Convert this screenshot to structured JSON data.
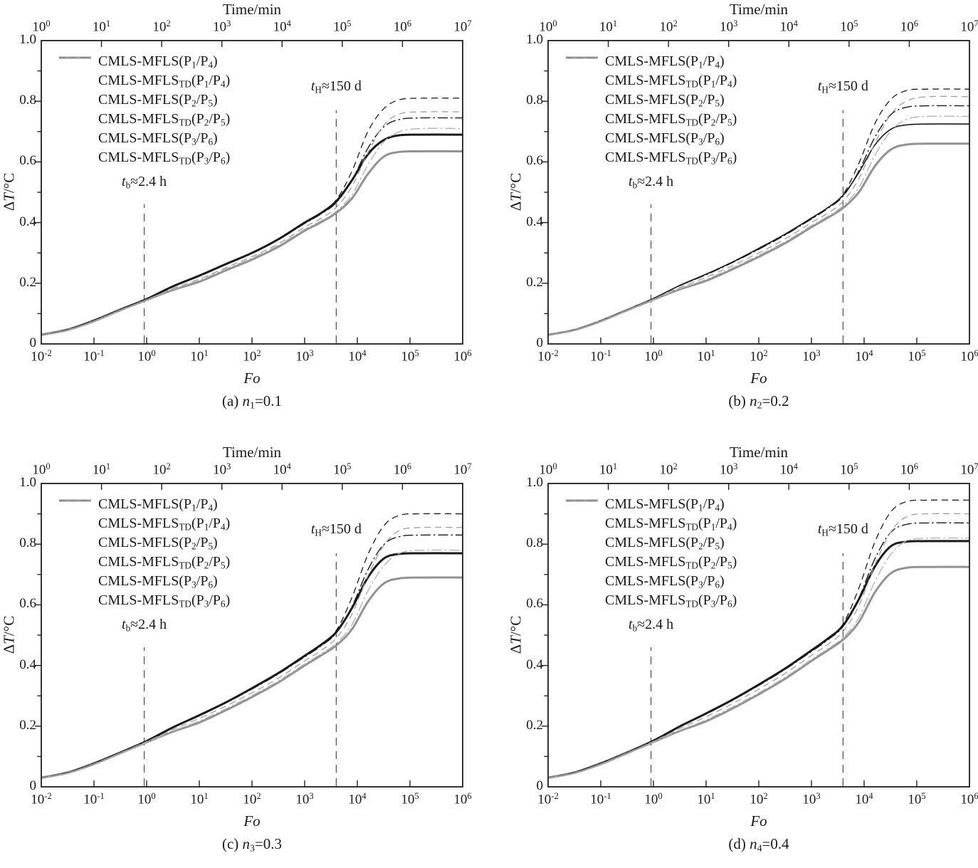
{
  "figure": {
    "background": "#ffffff",
    "text_color": "#1a1a1a",
    "frame_color": "#1f1f1f"
  },
  "chart_data": {
    "type": "line",
    "shared": {
      "top_axis": {
        "label": "Time/min",
        "base": "10",
        "exponents": [
          0,
          1,
          2,
          3,
          4,
          5,
          6,
          7
        ],
        "range_log10": [
          0,
          7
        ]
      },
      "x_axis": {
        "label_parts": [
          [
            "Fo",
            "i"
          ]
        ],
        "base": "10",
        "exponents": [
          -2,
          -1,
          0,
          1,
          2,
          3,
          4,
          5,
          6
        ],
        "range_log10": [
          -2,
          6
        ]
      },
      "y_axis": {
        "label_parts": [
          [
            "Δ",
            ""
          ],
          [
            "T",
            "i"
          ],
          [
            "/°C",
            ""
          ]
        ],
        "ticks": [
          "0",
          "0.2",
          "0.4",
          "0.6",
          "0.8",
          "1.0"
        ],
        "tick_values": [
          0,
          0.2,
          0.4,
          0.6,
          0.8,
          1.0
        ],
        "minor_values": [
          0.1,
          0.3,
          0.5,
          0.7,
          0.9
        ],
        "range": [
          0,
          1
        ]
      },
      "grid": "off",
      "legend_position": "upper-left",
      "annotations": [
        {
          "label_parts": [
            [
              "t",
              "i"
            ],
            [
              "b",
              "sub"
            ],
            [
              "≈2.4 h",
              ""
            ]
          ],
          "x_log10": -0.046,
          "line_top_v": 0.46,
          "label_bottom_v": 0.503
        },
        {
          "label_parts": [
            [
              "t",
              "i"
            ],
            [
              "H",
              "sub"
            ],
            [
              "≈150 d",
              ""
            ]
          ],
          "x_log10": 3.6,
          "line_top_v": 0.77,
          "label_bottom_v": 0.818
        }
      ],
      "x_grid_log10": [
        -2,
        -1.5,
        -1,
        -0.5,
        0,
        0.5,
        1,
        1.5,
        2,
        2.5,
        3,
        3.3,
        3.6,
        3.9,
        4.2,
        4.5,
        4.8,
        5.2,
        6
      ],
      "series_defs": [
        {
          "name": "CMLS-MFLS(P1/P4)",
          "label_parts": [
            [
              "CMLS-MFLS",
              ""
            ],
            [
              "(P",
              ""
            ],
            [
              "1",
              "sub"
            ],
            [
              "/P",
              ""
            ],
            [
              "4",
              "sub"
            ],
            [
              ")",
              ""
            ]
          ],
          "color": "#1a1a1a",
          "width": 3.0,
          "dash": "solid"
        },
        {
          "name": "CMLS-MFLS_TD(P1/P4)",
          "label_parts": [
            [
              "CMLS-MFLS",
              ""
            ],
            [
              "TD",
              "sub"
            ],
            [
              "(P",
              ""
            ],
            [
              "1",
              "sub"
            ],
            [
              "/P",
              ""
            ],
            [
              "4",
              "sub"
            ],
            [
              ")",
              ""
            ]
          ],
          "color": "#929292",
          "width": 3.0,
          "dash": "solid"
        },
        {
          "name": "CMLS-MFLS(P2/P5)",
          "label_parts": [
            [
              "CMLS-MFLS",
              ""
            ],
            [
              "(P",
              ""
            ],
            [
              "2",
              "sub"
            ],
            [
              "/P",
              ""
            ],
            [
              "5",
              "sub"
            ],
            [
              ")",
              ""
            ]
          ],
          "color": "#1a1a1a",
          "width": 1.4,
          "dash": "dashdot"
        },
        {
          "name": "CMLS-MFLS_TD(P2/P5)",
          "label_parts": [
            [
              "CMLS-MFLS",
              ""
            ],
            [
              "TD",
              "sub"
            ],
            [
              "(P",
              ""
            ],
            [
              "2",
              "sub"
            ],
            [
              "/P",
              ""
            ],
            [
              "5",
              "sub"
            ],
            [
              ")",
              ""
            ]
          ],
          "color": "#b4b4b4",
          "width": 1.4,
          "dash": "dashdot"
        },
        {
          "name": "CMLS-MFLS(P3/P6)",
          "label_parts": [
            [
              "CMLS-MFLS",
              ""
            ],
            [
              "(P",
              ""
            ],
            [
              "3",
              "sub"
            ],
            [
              "/P",
              ""
            ],
            [
              "6",
              "sub"
            ],
            [
              ")",
              ""
            ]
          ],
          "color": "#1a1a1a",
          "width": 1.3,
          "dash": "dash"
        },
        {
          "name": "CMLS-MFLS_TD(P3/P6)",
          "label_parts": [
            [
              "CMLS-MFLS",
              ""
            ],
            [
              "TD",
              "sub"
            ],
            [
              "(P",
              ""
            ],
            [
              "3",
              "sub"
            ],
            [
              "/P",
              ""
            ],
            [
              "6",
              "sub"
            ],
            [
              ")",
              ""
            ]
          ],
          "color": "#9e9e9e",
          "width": 1.3,
          "dash": "dash"
        }
      ]
    },
    "subplots": [
      {
        "id": "a",
        "caption_parts": [
          [
            "(a) ",
            ""
          ],
          [
            "n",
            "i"
          ],
          [
            "1",
            "sub"
          ],
          [
            "=0.1",
            ""
          ]
        ],
        "series_values": [
          [
            0.03,
            0.047,
            0.077,
            0.113,
            0.148,
            0.19,
            0.225,
            0.263,
            0.3,
            0.345,
            0.4,
            0.43,
            0.47,
            0.54,
            0.625,
            0.672,
            0.688,
            0.69,
            0.69
          ],
          [
            0.03,
            0.046,
            0.075,
            0.111,
            0.145,
            0.178,
            0.205,
            0.242,
            0.278,
            0.32,
            0.373,
            0.4,
            0.432,
            0.48,
            0.56,
            0.617,
            0.633,
            0.635,
            0.635
          ],
          [
            0.03,
            0.047,
            0.077,
            0.113,
            0.148,
            0.189,
            0.223,
            0.261,
            0.298,
            0.343,
            0.397,
            0.427,
            0.466,
            0.54,
            0.645,
            0.715,
            0.74,
            0.745,
            0.745
          ],
          [
            0.03,
            0.046,
            0.075,
            0.111,
            0.145,
            0.18,
            0.21,
            0.247,
            0.283,
            0.325,
            0.378,
            0.405,
            0.437,
            0.492,
            0.59,
            0.665,
            0.7,
            0.71,
            0.71
          ],
          [
            0.03,
            0.047,
            0.077,
            0.113,
            0.148,
            0.189,
            0.224,
            0.262,
            0.299,
            0.344,
            0.398,
            0.43,
            0.475,
            0.57,
            0.7,
            0.775,
            0.805,
            0.81,
            0.81
          ],
          [
            0.03,
            0.046,
            0.076,
            0.112,
            0.146,
            0.183,
            0.214,
            0.251,
            0.288,
            0.33,
            0.385,
            0.413,
            0.45,
            0.52,
            0.63,
            0.72,
            0.758,
            0.765,
            0.765
          ]
        ],
        "width_overrides": {}
      },
      {
        "id": "b",
        "caption_parts": [
          [
            "(b) ",
            ""
          ],
          [
            "n",
            "i"
          ],
          [
            "2",
            "sub"
          ],
          [
            "=0.2",
            ""
          ]
        ],
        "series_values": [
          [
            0.03,
            0.047,
            0.077,
            0.113,
            0.15,
            0.193,
            0.23,
            0.27,
            0.315,
            0.362,
            0.415,
            0.448,
            0.49,
            0.565,
            0.655,
            0.707,
            0.722,
            0.725,
            0.725
          ],
          [
            0.03,
            0.046,
            0.075,
            0.111,
            0.146,
            0.18,
            0.208,
            0.246,
            0.287,
            0.332,
            0.385,
            0.415,
            0.448,
            0.5,
            0.585,
            0.64,
            0.657,
            0.66,
            0.66
          ],
          [
            0.03,
            0.047,
            0.077,
            0.113,
            0.15,
            0.192,
            0.228,
            0.268,
            0.312,
            0.359,
            0.412,
            0.445,
            0.487,
            0.57,
            0.68,
            0.755,
            0.78,
            0.785,
            0.785
          ],
          [
            0.03,
            0.046,
            0.075,
            0.111,
            0.146,
            0.182,
            0.213,
            0.251,
            0.292,
            0.337,
            0.39,
            0.42,
            0.455,
            0.515,
            0.62,
            0.7,
            0.74,
            0.75,
            0.75
          ],
          [
            0.03,
            0.047,
            0.077,
            0.113,
            0.15,
            0.192,
            0.229,
            0.269,
            0.313,
            0.36,
            0.413,
            0.447,
            0.493,
            0.595,
            0.725,
            0.805,
            0.835,
            0.84,
            0.84
          ],
          [
            0.03,
            0.046,
            0.076,
            0.112,
            0.148,
            0.186,
            0.22,
            0.258,
            0.3,
            0.346,
            0.4,
            0.43,
            0.47,
            0.545,
            0.66,
            0.755,
            0.8,
            0.815,
            0.815
          ]
        ],
        "width_overrides": {
          "0": 1.6
        }
      },
      {
        "id": "c",
        "caption_parts": [
          [
            "(c) ",
            ""
          ],
          [
            "n",
            "i"
          ],
          [
            "3",
            "sub"
          ],
          [
            "=0.3",
            ""
          ]
        ],
        "series_values": [
          [
            0.03,
            0.047,
            0.077,
            0.113,
            0.151,
            0.196,
            0.236,
            0.278,
            0.325,
            0.375,
            0.432,
            0.467,
            0.51,
            0.59,
            0.69,
            0.752,
            0.768,
            0.77,
            0.77
          ],
          [
            0.03,
            0.046,
            0.075,
            0.111,
            0.147,
            0.182,
            0.212,
            0.252,
            0.296,
            0.344,
            0.4,
            0.432,
            0.466,
            0.52,
            0.61,
            0.67,
            0.687,
            0.69,
            0.69
          ],
          [
            0.03,
            0.047,
            0.077,
            0.113,
            0.151,
            0.195,
            0.234,
            0.276,
            0.322,
            0.372,
            0.428,
            0.463,
            0.507,
            0.595,
            0.715,
            0.798,
            0.825,
            0.83,
            0.83
          ],
          [
            0.03,
            0.046,
            0.075,
            0.111,
            0.147,
            0.184,
            0.217,
            0.257,
            0.301,
            0.349,
            0.405,
            0.437,
            0.473,
            0.535,
            0.645,
            0.728,
            0.77,
            0.78,
            0.78
          ],
          [
            0.03,
            0.047,
            0.077,
            0.113,
            0.151,
            0.195,
            0.235,
            0.277,
            0.323,
            0.373,
            0.43,
            0.466,
            0.515,
            0.625,
            0.765,
            0.86,
            0.895,
            0.9,
            0.9
          ],
          [
            0.03,
            0.046,
            0.076,
            0.112,
            0.149,
            0.189,
            0.226,
            0.266,
            0.31,
            0.358,
            0.415,
            0.448,
            0.49,
            0.57,
            0.695,
            0.795,
            0.845,
            0.855,
            0.855
          ]
        ],
        "width_overrides": {}
      },
      {
        "id": "d",
        "caption_parts": [
          [
            "(d) ",
            ""
          ],
          [
            "n",
            "i"
          ],
          [
            "4",
            "sub"
          ],
          [
            "=0.4",
            ""
          ]
        ],
        "series_values": [
          [
            0.03,
            0.047,
            0.077,
            0.113,
            0.152,
            0.199,
            0.242,
            0.287,
            0.337,
            0.39,
            0.45,
            0.487,
            0.532,
            0.618,
            0.725,
            0.792,
            0.808,
            0.81,
            0.81
          ],
          [
            0.03,
            0.046,
            0.075,
            0.111,
            0.148,
            0.184,
            0.216,
            0.258,
            0.305,
            0.356,
            0.415,
            0.449,
            0.485,
            0.543,
            0.64,
            0.703,
            0.722,
            0.725,
            0.725
          ],
          [
            0.03,
            0.047,
            0.077,
            0.113,
            0.152,
            0.198,
            0.24,
            0.285,
            0.334,
            0.387,
            0.446,
            0.483,
            0.528,
            0.622,
            0.75,
            0.838,
            0.865,
            0.87,
            0.87
          ],
          [
            0.03,
            0.046,
            0.075,
            0.111,
            0.148,
            0.186,
            0.221,
            0.263,
            0.31,
            0.361,
            0.42,
            0.454,
            0.492,
            0.558,
            0.675,
            0.765,
            0.81,
            0.82,
            0.82
          ],
          [
            0.03,
            0.047,
            0.077,
            0.113,
            0.152,
            0.198,
            0.241,
            0.286,
            0.335,
            0.388,
            0.448,
            0.486,
            0.537,
            0.655,
            0.805,
            0.905,
            0.94,
            0.945,
            0.945
          ],
          [
            0.03,
            0.046,
            0.076,
            0.112,
            0.15,
            0.192,
            0.231,
            0.274,
            0.322,
            0.374,
            0.433,
            0.468,
            0.512,
            0.597,
            0.73,
            0.838,
            0.89,
            0.9,
            0.9
          ]
        ],
        "width_overrides": {}
      }
    ]
  }
}
